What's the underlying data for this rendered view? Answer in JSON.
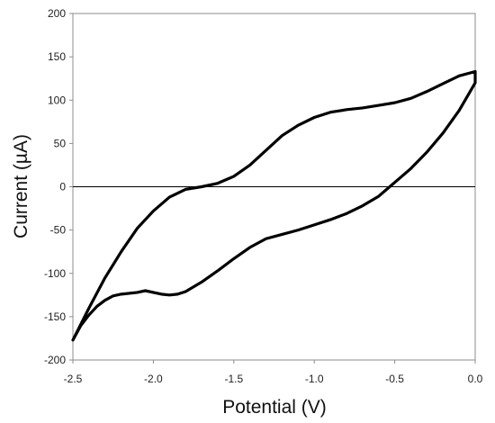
{
  "chart_data": {
    "type": "line",
    "title": "",
    "xlabel": "Potential (V)",
    "ylabel": "Current (µA)",
    "xlim": [
      -2.5,
      0.0
    ],
    "ylim": [
      -200,
      200
    ],
    "x_ticks": [
      "-2.5",
      "-2.0",
      "-1.5",
      "-1.0",
      "-0.5",
      "0.0"
    ],
    "x_tick_values": [
      -2.5,
      -2.0,
      -1.5,
      -1.0,
      -0.5,
      0.0
    ],
    "y_ticks": [
      "200",
      "150",
      "100",
      "50",
      "0",
      "-50",
      "-100",
      "-150",
      "-200"
    ],
    "y_tick_values": [
      200,
      150,
      100,
      50,
      0,
      -50,
      -100,
      -150,
      -200
    ],
    "zero_line": true,
    "grid": false,
    "legend": "none",
    "line_color": "#000000",
    "series": [
      {
        "values": [
          {
            "x": 0.0,
            "y": 133
          },
          {
            "x": -0.1,
            "y": 128
          },
          {
            "x": -0.2,
            "y": 119
          },
          {
            "x": -0.3,
            "y": 110
          },
          {
            "x": -0.4,
            "y": 102
          },
          {
            "x": -0.5,
            "y": 97
          },
          {
            "x": -0.6,
            "y": 94
          },
          {
            "x": -0.7,
            "y": 91
          },
          {
            "x": -0.8,
            "y": 89
          },
          {
            "x": -0.9,
            "y": 86
          },
          {
            "x": -1.0,
            "y": 80
          },
          {
            "x": -1.1,
            "y": 71
          },
          {
            "x": -1.2,
            "y": 59
          },
          {
            "x": -1.3,
            "y": 42
          },
          {
            "x": -1.4,
            "y": 25
          },
          {
            "x": -1.5,
            "y": 12
          },
          {
            "x": -1.6,
            "y": 4
          },
          {
            "x": -1.7,
            "y": 0
          },
          {
            "x": -1.8,
            "y": -3
          },
          {
            "x": -1.9,
            "y": -12
          },
          {
            "x": -2.0,
            "y": -28
          },
          {
            "x": -2.1,
            "y": -48
          },
          {
            "x": -2.2,
            "y": -75
          },
          {
            "x": -2.3,
            "y": -105
          },
          {
            "x": -2.4,
            "y": -140
          },
          {
            "x": -2.5,
            "y": -177
          },
          {
            "x": -2.45,
            "y": -160
          },
          {
            "x": -2.4,
            "y": -148
          },
          {
            "x": -2.35,
            "y": -138
          },
          {
            "x": -2.3,
            "y": -131
          },
          {
            "x": -2.25,
            "y": -126
          },
          {
            "x": -2.2,
            "y": -124
          },
          {
            "x": -2.1,
            "y": -122
          },
          {
            "x": -2.05,
            "y": -120
          },
          {
            "x": -2.0,
            "y": -122
          },
          {
            "x": -1.95,
            "y": -124
          },
          {
            "x": -1.9,
            "y": -125
          },
          {
            "x": -1.85,
            "y": -124
          },
          {
            "x": -1.8,
            "y": -121
          },
          {
            "x": -1.7,
            "y": -110
          },
          {
            "x": -1.6,
            "y": -97
          },
          {
            "x": -1.5,
            "y": -83
          },
          {
            "x": -1.4,
            "y": -70
          },
          {
            "x": -1.3,
            "y": -60
          },
          {
            "x": -1.2,
            "y": -55
          },
          {
            "x": -1.1,
            "y": -50
          },
          {
            "x": -1.0,
            "y": -44
          },
          {
            "x": -0.9,
            "y": -38
          },
          {
            "x": -0.8,
            "y": -31
          },
          {
            "x": -0.7,
            "y": -22
          },
          {
            "x": -0.6,
            "y": -11
          },
          {
            "x": -0.55,
            "y": -3
          },
          {
            "x": -0.5,
            "y": 5
          },
          {
            "x": -0.4,
            "y": 21
          },
          {
            "x": -0.3,
            "y": 40
          },
          {
            "x": -0.2,
            "y": 62
          },
          {
            "x": -0.1,
            "y": 88
          },
          {
            "x": -0.05,
            "y": 104
          },
          {
            "x": 0.0,
            "y": 120
          },
          {
            "x": 0.0,
            "y": 133
          }
        ]
      }
    ]
  }
}
